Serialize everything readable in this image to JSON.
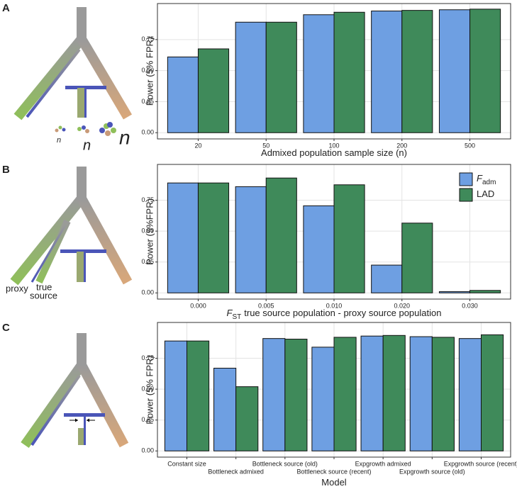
{
  "chart_data": [
    {
      "type": "bar",
      "panel": "A",
      "diagram_labels": [
        "n",
        "n",
        "n"
      ],
      "ylabel": "Power (5% FPR)",
      "xlabel": "Admixed population sample size (n)",
      "categories": [
        "20",
        "50",
        "100",
        "200",
        "500"
      ],
      "series": [
        {
          "color": "#6e9fe2",
          "values": [
            0.61,
            0.89,
            0.95,
            0.98,
            0.99
          ]
        },
        {
          "color": "#3f8a5a",
          "values": [
            0.675,
            0.89,
            0.97,
            0.985,
            0.995
          ]
        }
      ],
      "ylim": [
        -0.05,
        1.04
      ],
      "yticks": [
        {
          "value": 0,
          "label": "0.00"
        },
        {
          "value": 0.25,
          "label": "0.25"
        },
        {
          "value": 0.5,
          "label": "0.50"
        },
        {
          "value": 0.75,
          "label": "0.75"
        }
      ],
      "grid": true
    },
    {
      "type": "bar",
      "panel": "B",
      "diagram_labels": [
        "proxy",
        "true",
        "source"
      ],
      "ylabel": "Power (5%FPR)",
      "xlabel_symbol": "F",
      "xlabel_subscript": "ST",
      "xlabel": "true source population - proxy source population",
      "categories": [
        "0.000",
        "0.005",
        "0.010",
        "0.020",
        "0.030"
      ],
      "series": [
        {
          "name": "F",
          "name_subscript": "adm",
          "color": "#6e9fe2",
          "values": [
            0.89,
            0.86,
            0.705,
            0.225,
            0.01
          ]
        },
        {
          "name": "LAD",
          "color": "#3f8a5a",
          "values": [
            0.89,
            0.93,
            0.875,
            0.565,
            0.02
          ]
        }
      ],
      "ylim": [
        -0.05,
        1.04
      ],
      "yticks": [
        {
          "value": 0,
          "label": "0.00"
        },
        {
          "value": 0.25,
          "label": "0.25"
        },
        {
          "value": 0.5,
          "label": "0.50"
        },
        {
          "value": 0.75,
          "label": "0.75"
        }
      ],
      "grid": true,
      "legend": "top-right"
    },
    {
      "type": "bar",
      "panel": "C",
      "ylabel": "Power (5% FPR)",
      "xlabel": "Model",
      "categories": [
        "Constant size",
        "Bottleneck admixed",
        "Bottleneck source (old)",
        "Bottleneck source (recent)",
        "Expgrowth admixed",
        "Expgrowth source (old)",
        "Expgrowth source (recent)"
      ],
      "series": [
        {
          "color": "#6e9fe2",
          "values": [
            0.89,
            0.67,
            0.91,
            0.84,
            0.93,
            0.925,
            0.91
          ]
        },
        {
          "color": "#3f8a5a",
          "values": [
            0.89,
            0.52,
            0.905,
            0.92,
            0.935,
            0.92,
            0.94
          ]
        }
      ],
      "ylim": [
        -0.05,
        1.04
      ],
      "yticks": [
        {
          "value": 0,
          "label": "0.00"
        },
        {
          "value": 0.25,
          "label": "0.25"
        },
        {
          "value": 0.5,
          "label": "0.50"
        },
        {
          "value": 0.75,
          "label": "0.75"
        }
      ],
      "grid": true
    }
  ]
}
